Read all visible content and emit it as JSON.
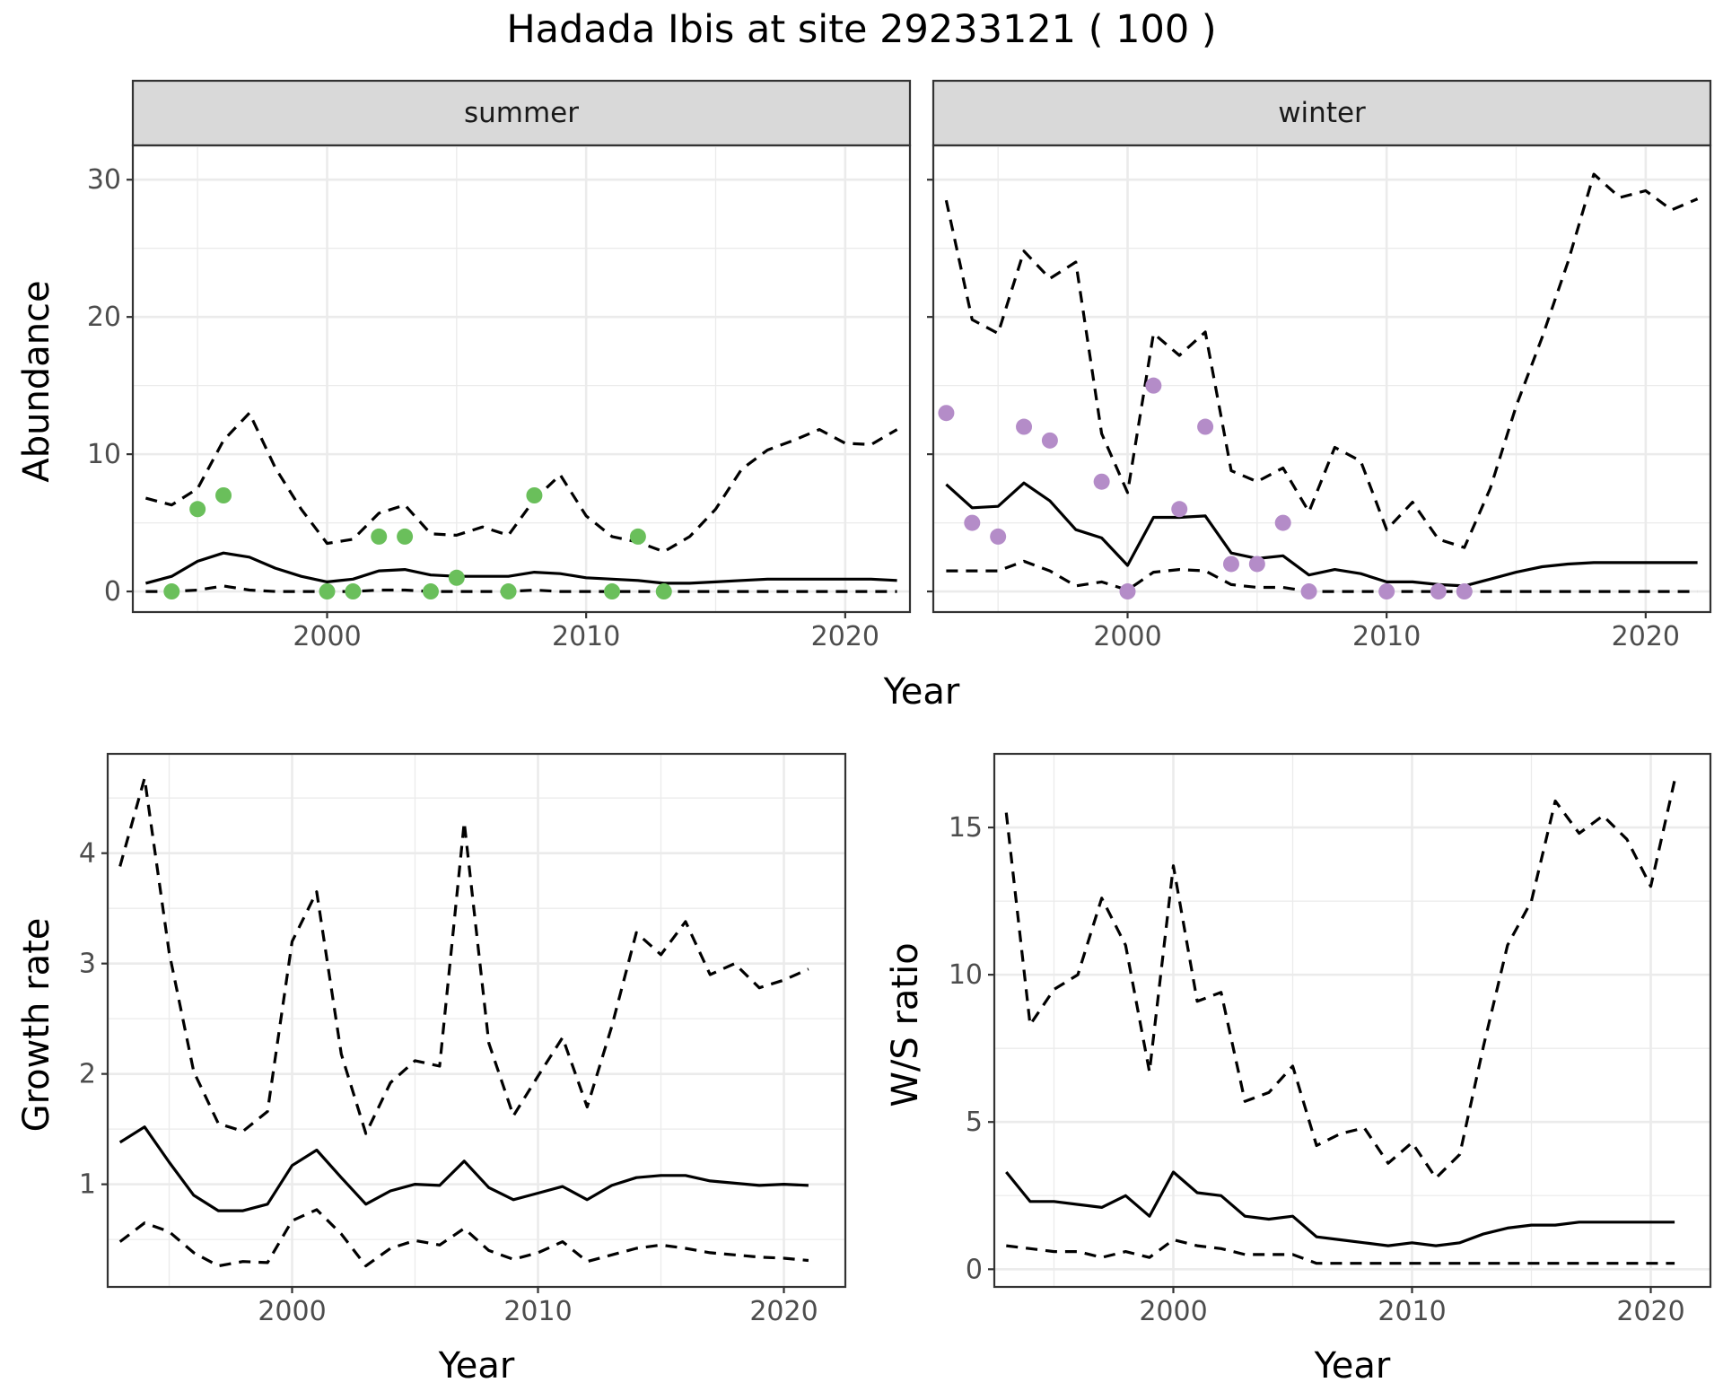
{
  "title": "Hadada Ibis at site 29233121 ( 100 )",
  "colors": {
    "summer_points": "#6abf5b",
    "winter_points": "#b48cc8"
  },
  "chart_data": [
    {
      "type": "line",
      "panel": "summer",
      "facet_label": "summer",
      "ylabel": "Abundance",
      "xlabel": "Year",
      "xlim": [
        1992.5,
        2022.5
      ],
      "ylim": [
        -1.5,
        32.5
      ],
      "x_ticks": [
        2000,
        2010,
        2020
      ],
      "y_ticks": [
        0,
        10,
        20,
        30
      ],
      "x_tick_labels": [
        "2000",
        "2010",
        "2020"
      ],
      "y_tick_labels": [
        "0",
        "10",
        "20",
        "30"
      ],
      "series": [
        {
          "role": "mean",
          "style": "solid",
          "x": [
            1993,
            1994,
            1995,
            1996,
            1997,
            1998,
            1999,
            2000,
            2001,
            2002,
            2003,
            2004,
            2005,
            2006,
            2007,
            2008,
            2009,
            2010,
            2011,
            2012,
            2013,
            2014,
            2015,
            2016,
            2017,
            2018,
            2019,
            2020,
            2021,
            2022
          ],
          "y": [
            0.6,
            1.1,
            2.2,
            2.8,
            2.5,
            1.7,
            1.1,
            0.7,
            0.9,
            1.5,
            1.6,
            1.2,
            1.1,
            1.1,
            1.1,
            1.4,
            1.3,
            1.0,
            0.9,
            0.8,
            0.6,
            0.6,
            0.7,
            0.8,
            0.9,
            0.9,
            0.9,
            0.9,
            0.9,
            0.8
          ]
        },
        {
          "role": "upper",
          "style": "dashed",
          "x": [
            1993,
            1994,
            1995,
            1996,
            1997,
            1998,
            1999,
            2000,
            2001,
            2002,
            2003,
            2004,
            2005,
            2006,
            2007,
            2008,
            2009,
            2010,
            2011,
            2012,
            2013,
            2014,
            2015,
            2016,
            2017,
            2018,
            2019,
            2020,
            2021,
            2022
          ],
          "y": [
            6.8,
            6.3,
            7.5,
            11,
            13,
            9,
            6,
            3.5,
            3.8,
            5.7,
            6.3,
            4.2,
            4.1,
            4.7,
            4.1,
            6.7,
            8.5,
            5.5,
            4.0,
            3.6,
            2.9,
            4.0,
            6.0,
            8.9,
            10.3,
            11.0,
            11.8,
            10.8,
            10.7,
            11.8
          ]
        },
        {
          "role": "lower",
          "style": "dashed",
          "x": [
            1993,
            1994,
            1995,
            1996,
            1997,
            1998,
            1999,
            2000,
            2001,
            2002,
            2003,
            2004,
            2005,
            2006,
            2007,
            2008,
            2009,
            2010,
            2011,
            2012,
            2013,
            2014,
            2015,
            2016,
            2017,
            2018,
            2019,
            2020,
            2021,
            2022
          ],
          "y": [
            0,
            0,
            0.1,
            0.4,
            0.1,
            0,
            0,
            0,
            0,
            0.1,
            0.1,
            0,
            0,
            0,
            0,
            0.1,
            0,
            0,
            0,
            0,
            0,
            0,
            0,
            0,
            0,
            0,
            0,
            0,
            0,
            0
          ]
        }
      ],
      "points": {
        "x": [
          1994,
          1995,
          1996,
          2000,
          2001,
          2002,
          2003,
          2004,
          2005,
          2007,
          2008,
          2011,
          2012,
          2013
        ],
        "y": [
          0,
          6,
          7,
          0,
          0,
          4,
          4,
          0,
          1,
          0,
          7,
          0,
          4,
          0
        ]
      }
    },
    {
      "type": "line",
      "panel": "winter",
      "facet_label": "winter",
      "xlabel": "Year",
      "xlim": [
        1992.5,
        2022.5
      ],
      "ylim": [
        -1.5,
        32.5
      ],
      "x_ticks": [
        2000,
        2010,
        2020
      ],
      "y_ticks": [
        0,
        10,
        20,
        30
      ],
      "x_tick_labels": [
        "2000",
        "2010",
        "2020"
      ],
      "series": [
        {
          "role": "mean",
          "style": "solid",
          "x": [
            1993,
            1994,
            1995,
            1996,
            1997,
            1998,
            1999,
            2000,
            2001,
            2002,
            2003,
            2004,
            2005,
            2006,
            2007,
            2008,
            2009,
            2010,
            2011,
            2012,
            2013,
            2014,
            2015,
            2016,
            2017,
            2018,
            2019,
            2020,
            2021,
            2022
          ],
          "y": [
            7.8,
            6.1,
            6.2,
            7.9,
            6.6,
            4.5,
            3.9,
            1.9,
            5.4,
            5.4,
            5.5,
            2.8,
            2.4,
            2.6,
            1.2,
            1.6,
            1.3,
            0.7,
            0.7,
            0.5,
            0.4,
            0.9,
            1.4,
            1.8,
            2.0,
            2.1,
            2.1,
            2.1,
            2.1,
            2.1
          ]
        },
        {
          "role": "upper",
          "style": "dashed",
          "x": [
            1993,
            1994,
            1995,
            1996,
            1997,
            1998,
            1999,
            2000,
            2001,
            2002,
            2003,
            2004,
            2005,
            2006,
            2007,
            2008,
            2009,
            2010,
            2011,
            2012,
            2013,
            2014,
            2015,
            2016,
            2017,
            2018,
            2019,
            2020,
            2021,
            2022
          ],
          "y": [
            28.5,
            19.8,
            18.8,
            24.8,
            22.8,
            24.0,
            11.5,
            7.2,
            18.8,
            17.2,
            18.9,
            8.8,
            8.0,
            9.0,
            5.8,
            10.5,
            9.5,
            4.5,
            6.5,
            3.8,
            3.2,
            7.5,
            13.5,
            18.5,
            24.0,
            30.4,
            28.7,
            29.2,
            27.8,
            28.6
          ]
        },
        {
          "role": "lower",
          "style": "dashed",
          "x": [
            1993,
            1994,
            1995,
            1996,
            1997,
            1998,
            1999,
            2000,
            2001,
            2002,
            2003,
            2004,
            2005,
            2006,
            2007,
            2008,
            2009,
            2010,
            2011,
            2012,
            2013,
            2014,
            2015,
            2016,
            2017,
            2018,
            2019,
            2020,
            2021,
            2022
          ],
          "y": [
            1.5,
            1.5,
            1.5,
            2.2,
            1.5,
            0.4,
            0.7,
            0.1,
            1.4,
            1.6,
            1.5,
            0.5,
            0.3,
            0.3,
            0,
            0,
            0,
            0,
            0,
            0,
            0,
            0,
            0,
            0,
            0,
            0,
            0,
            0,
            0,
            0
          ]
        }
      ],
      "points": {
        "x": [
          1993,
          1994,
          1995,
          1996,
          1997,
          1999,
          2000,
          2001,
          2002,
          2003,
          2004,
          2005,
          2006,
          2007,
          2010,
          2012,
          2013
        ],
        "y": [
          13,
          5,
          4,
          12,
          11,
          8,
          0,
          15,
          6,
          12,
          2,
          2,
          5,
          0,
          0,
          0,
          0
        ]
      }
    },
    {
      "type": "line",
      "panel": "growth-rate",
      "ylabel": "Growth rate",
      "xlabel": "Year",
      "xlim": [
        1992.5,
        2022.5
      ],
      "ylim": [
        0.07,
        4.9
      ],
      "x_ticks": [
        2000,
        2010,
        2020
      ],
      "y_ticks": [
        1,
        2,
        3,
        4
      ],
      "x_tick_labels": [
        "2000",
        "2010",
        "2020"
      ],
      "y_tick_labels": [
        "1",
        "2",
        "3",
        "4"
      ],
      "series": [
        {
          "role": "mean",
          "style": "solid",
          "x": [
            1993,
            1994,
            1995,
            1996,
            1997,
            1998,
            1999,
            2000,
            2001,
            2002,
            2003,
            2004,
            2005,
            2006,
            2007,
            2008,
            2009,
            2010,
            2011,
            2012,
            2013,
            2014,
            2015,
            2016,
            2017,
            2018,
            2019,
            2020,
            2021
          ],
          "y": [
            1.38,
            1.52,
            1.2,
            0.9,
            0.76,
            0.76,
            0.82,
            1.17,
            1.31,
            1.06,
            0.82,
            0.94,
            1.0,
            0.99,
            1.21,
            0.97,
            0.86,
            0.92,
            0.98,
            0.86,
            0.99,
            1.06,
            1.08,
            1.08,
            1.03,
            1.01,
            0.99,
            1.0,
            0.99
          ]
        },
        {
          "role": "upper",
          "style": "dashed",
          "x": [
            1993,
            1994,
            1995,
            1996,
            1997,
            1998,
            1999,
            2000,
            2001,
            2002,
            2003,
            2004,
            2005,
            2006,
            2007,
            2008,
            2009,
            2010,
            2011,
            2012,
            2013,
            2014,
            2015,
            2016,
            2017,
            2018,
            2019,
            2020,
            2021
          ],
          "y": [
            3.88,
            4.68,
            3.1,
            2.02,
            1.55,
            1.48,
            1.66,
            3.2,
            3.65,
            2.18,
            1.46,
            1.92,
            2.12,
            2.07,
            4.28,
            2.28,
            1.62,
            1.98,
            2.33,
            1.7,
            2.43,
            3.28,
            3.08,
            3.38,
            2.9,
            3.0,
            2.78,
            2.85,
            2.95
          ]
        },
        {
          "role": "lower",
          "style": "dashed",
          "x": [
            1993,
            1994,
            1995,
            1996,
            1997,
            1998,
            1999,
            2000,
            2001,
            2002,
            2003,
            2004,
            2005,
            2006,
            2007,
            2008,
            2009,
            2010,
            2011,
            2012,
            2013,
            2014,
            2015,
            2016,
            2017,
            2018,
            2019,
            2020,
            2021
          ],
          "y": [
            0.48,
            0.65,
            0.57,
            0.38,
            0.26,
            0.3,
            0.29,
            0.67,
            0.77,
            0.55,
            0.26,
            0.42,
            0.49,
            0.45,
            0.6,
            0.4,
            0.32,
            0.38,
            0.48,
            0.3,
            0.36,
            0.42,
            0.45,
            0.42,
            0.38,
            0.36,
            0.34,
            0.33,
            0.31
          ]
        }
      ]
    },
    {
      "type": "line",
      "panel": "ws-ratio",
      "ylabel": "W/S ratio",
      "xlabel": "Year",
      "xlim": [
        1992.5,
        2022.5
      ],
      "ylim": [
        -0.6,
        17.5
      ],
      "x_ticks": [
        2000,
        2010,
        2020
      ],
      "y_ticks": [
        0,
        5,
        10,
        15
      ],
      "x_tick_labels": [
        "2000",
        "2010",
        "2020"
      ],
      "y_tick_labels": [
        "0",
        "5",
        "10",
        "15"
      ],
      "series": [
        {
          "role": "mean",
          "style": "solid",
          "x": [
            1993,
            1994,
            1995,
            1996,
            1997,
            1998,
            1999,
            2000,
            2001,
            2002,
            2003,
            2004,
            2005,
            2006,
            2007,
            2008,
            2009,
            2010,
            2011,
            2012,
            2013,
            2014,
            2015,
            2016,
            2017,
            2018,
            2019,
            2020,
            2021
          ],
          "y": [
            3.3,
            2.3,
            2.3,
            2.2,
            2.1,
            2.5,
            1.8,
            3.3,
            2.6,
            2.5,
            1.8,
            1.7,
            1.8,
            1.1,
            1.0,
            0.9,
            0.8,
            0.9,
            0.8,
            0.9,
            1.2,
            1.4,
            1.5,
            1.5,
            1.6,
            1.6,
            1.6,
            1.6,
            1.6
          ]
        },
        {
          "role": "upper",
          "style": "dashed",
          "x": [
            1993,
            1994,
            1995,
            1996,
            1997,
            1998,
            1999,
            2000,
            2001,
            2002,
            2003,
            2004,
            2005,
            2006,
            2007,
            2008,
            2009,
            2010,
            2011,
            2012,
            2013,
            2014,
            2015,
            2016,
            2017,
            2018,
            2019,
            2020,
            2021
          ],
          "y": [
            15.5,
            8.3,
            9.5,
            10.0,
            12.6,
            11.0,
            6.7,
            13.7,
            9.1,
            9.4,
            5.7,
            6.0,
            6.9,
            4.2,
            4.6,
            4.8,
            3.6,
            4.3,
            3.1,
            3.9,
            7.6,
            11.0,
            12.5,
            15.9,
            14.8,
            15.4,
            14.6,
            13.0,
            16.6
          ]
        },
        {
          "role": "lower",
          "style": "dashed",
          "x": [
            1993,
            1994,
            1995,
            1996,
            1997,
            1998,
            1999,
            2000,
            2001,
            2002,
            2003,
            2004,
            2005,
            2006,
            2007,
            2008,
            2009,
            2010,
            2011,
            2012,
            2013,
            2014,
            2015,
            2016,
            2017,
            2018,
            2019,
            2020,
            2021
          ],
          "y": [
            0.8,
            0.7,
            0.6,
            0.6,
            0.4,
            0.6,
            0.4,
            1.0,
            0.8,
            0.7,
            0.5,
            0.5,
            0.5,
            0.2,
            0.2,
            0.2,
            0.2,
            0.2,
            0.2,
            0.2,
            0.2,
            0.2,
            0.2,
            0.2,
            0.2,
            0.2,
            0.2,
            0.2,
            0.2
          ]
        }
      ]
    }
  ]
}
